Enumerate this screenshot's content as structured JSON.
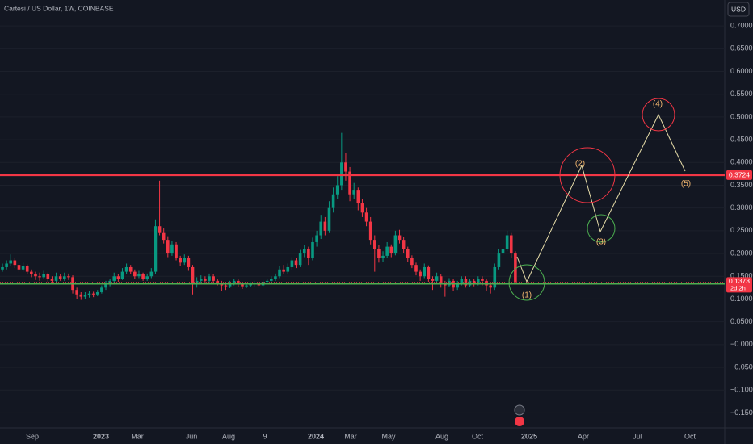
{
  "header": {
    "title": "Cartesi / US Dollar, 1W, COINBASE",
    "currency": "USD"
  },
  "chart_data": {
    "type": "candlestick",
    "up_color": "#089981",
    "down_color": "#f23645",
    "ylim": [
      -0.183,
      0.757
    ],
    "yticks": [
      {
        "value": 0.7,
        "label": "0.7000"
      },
      {
        "value": 0.65,
        "label": "0.6500"
      },
      {
        "value": 0.6,
        "label": "0.6000"
      },
      {
        "value": 0.55,
        "label": "0.5500"
      },
      {
        "value": 0.5,
        "label": "0.5000"
      },
      {
        "value": 0.45,
        "label": "0.4500"
      },
      {
        "value": 0.4,
        "label": "0.4000"
      },
      {
        "value": 0.35,
        "label": "0.3500"
      },
      {
        "value": 0.3,
        "label": "0.3000"
      },
      {
        "value": 0.25,
        "label": "0.2500"
      },
      {
        "value": 0.2,
        "label": "0.2000"
      },
      {
        "value": 0.15,
        "label": "0.1500"
      },
      {
        "value": 0.1,
        "label": "0.1000"
      },
      {
        "value": 0.05,
        "label": "0.0500"
      },
      {
        "value": 0,
        "label": "−0.0000"
      },
      {
        "value": -0.05,
        "label": "−0.0500"
      },
      {
        "value": -0.1,
        "label": "−0.1000"
      },
      {
        "value": -0.15,
        "label": "−0.1500"
      }
    ],
    "x_labels": [
      "Sep",
      "2023",
      "Mar",
      "Jun",
      "Aug",
      "9",
      "2024",
      "Mar",
      "May",
      "Aug",
      "Oct",
      "2025",
      "Apr",
      "Jul",
      "Oct"
    ],
    "levels": [
      {
        "value": 0.3724,
        "color": "#f23645"
      },
      {
        "value": 0.1341,
        "color": "#4caf50"
      }
    ],
    "last_price": {
      "value": 0.1373,
      "countdown": "2d 2h"
    },
    "waves": [
      "(1)",
      "(2)",
      "(3)",
      "(4)",
      "(5)"
    ],
    "candles": [
      [
        0.165,
        0.178,
        0.16,
        0.17
      ],
      [
        0.17,
        0.185,
        0.165,
        0.178
      ],
      [
        0.178,
        0.198,
        0.172,
        0.185
      ],
      [
        0.185,
        0.19,
        0.168,
        0.175
      ],
      [
        0.175,
        0.18,
        0.158,
        0.165
      ],
      [
        0.165,
        0.18,
        0.16,
        0.172
      ],
      [
        0.172,
        0.176,
        0.155,
        0.16
      ],
      [
        0.16,
        0.165,
        0.148,
        0.155
      ],
      [
        0.155,
        0.16,
        0.142,
        0.15
      ],
      [
        0.15,
        0.158,
        0.14,
        0.148
      ],
      [
        0.148,
        0.162,
        0.144,
        0.155
      ],
      [
        0.155,
        0.158,
        0.138,
        0.145
      ],
      [
        0.145,
        0.15,
        0.132,
        0.14
      ],
      [
        0.14,
        0.158,
        0.136,
        0.15
      ],
      [
        0.15,
        0.155,
        0.14,
        0.145
      ],
      [
        0.145,
        0.158,
        0.14,
        0.15
      ],
      [
        0.15,
        0.156,
        0.142,
        0.148
      ],
      [
        0.148,
        0.152,
        0.112,
        0.12
      ],
      [
        0.12,
        0.125,
        0.1,
        0.11
      ],
      [
        0.11,
        0.115,
        0.098,
        0.105
      ],
      [
        0.105,
        0.115,
        0.1,
        0.108
      ],
      [
        0.108,
        0.118,
        0.103,
        0.112
      ],
      [
        0.112,
        0.116,
        0.104,
        0.11
      ],
      [
        0.11,
        0.12,
        0.106,
        0.115
      ],
      [
        0.115,
        0.13,
        0.112,
        0.125
      ],
      [
        0.125,
        0.14,
        0.12,
        0.135
      ],
      [
        0.135,
        0.145,
        0.128,
        0.14
      ],
      [
        0.14,
        0.158,
        0.136,
        0.15
      ],
      [
        0.15,
        0.155,
        0.138,
        0.145
      ],
      [
        0.145,
        0.168,
        0.142,
        0.16
      ],
      [
        0.16,
        0.178,
        0.155,
        0.17
      ],
      [
        0.17,
        0.175,
        0.155,
        0.16
      ],
      [
        0.16,
        0.165,
        0.145,
        0.15
      ],
      [
        0.15,
        0.162,
        0.146,
        0.155
      ],
      [
        0.155,
        0.158,
        0.14,
        0.145
      ],
      [
        0.145,
        0.156,
        0.14,
        0.15
      ],
      [
        0.15,
        0.168,
        0.146,
        0.16
      ],
      [
        0.16,
        0.275,
        0.155,
        0.26
      ],
      [
        0.26,
        0.36,
        0.24,
        0.245
      ],
      [
        0.245,
        0.255,
        0.222,
        0.23
      ],
      [
        0.23,
        0.238,
        0.192,
        0.2
      ],
      [
        0.2,
        0.228,
        0.195,
        0.22
      ],
      [
        0.22,
        0.225,
        0.185,
        0.19
      ],
      [
        0.19,
        0.195,
        0.172,
        0.18
      ],
      [
        0.18,
        0.198,
        0.175,
        0.19
      ],
      [
        0.19,
        0.195,
        0.162,
        0.17
      ],
      [
        0.17,
        0.175,
        0.11,
        0.135
      ],
      [
        0.135,
        0.148,
        0.125,
        0.14
      ],
      [
        0.14,
        0.152,
        0.134,
        0.145
      ],
      [
        0.145,
        0.15,
        0.135,
        0.14
      ],
      [
        0.14,
        0.156,
        0.136,
        0.15
      ],
      [
        0.15,
        0.154,
        0.135,
        0.14
      ],
      [
        0.14,
        0.145,
        0.13,
        0.135
      ],
      [
        0.135,
        0.14,
        0.118,
        0.13
      ],
      [
        0.13,
        0.136,
        0.12,
        0.128
      ],
      [
        0.128,
        0.14,
        0.124,
        0.135
      ],
      [
        0.135,
        0.145,
        0.13,
        0.14
      ],
      [
        0.14,
        0.144,
        0.126,
        0.132
      ],
      [
        0.132,
        0.136,
        0.122,
        0.128
      ],
      [
        0.128,
        0.135,
        0.124,
        0.13
      ],
      [
        0.13,
        0.137,
        0.126,
        0.132
      ],
      [
        0.132,
        0.14,
        0.128,
        0.135
      ],
      [
        0.135,
        0.138,
        0.125,
        0.13
      ],
      [
        0.13,
        0.142,
        0.127,
        0.138
      ],
      [
        0.138,
        0.145,
        0.133,
        0.14
      ],
      [
        0.14,
        0.15,
        0.136,
        0.145
      ],
      [
        0.145,
        0.156,
        0.14,
        0.15
      ],
      [
        0.15,
        0.172,
        0.146,
        0.165
      ],
      [
        0.165,
        0.175,
        0.155,
        0.16
      ],
      [
        0.16,
        0.178,
        0.156,
        0.17
      ],
      [
        0.17,
        0.192,
        0.165,
        0.185
      ],
      [
        0.185,
        0.19,
        0.168,
        0.175
      ],
      [
        0.175,
        0.208,
        0.17,
        0.2
      ],
      [
        0.2,
        0.218,
        0.192,
        0.21
      ],
      [
        0.21,
        0.215,
        0.175,
        0.19
      ],
      [
        0.19,
        0.235,
        0.185,
        0.225
      ],
      [
        0.225,
        0.25,
        0.215,
        0.24
      ],
      [
        0.24,
        0.285,
        0.232,
        0.27
      ],
      [
        0.27,
        0.28,
        0.24,
        0.25
      ],
      [
        0.25,
        0.315,
        0.245,
        0.3
      ],
      [
        0.3,
        0.345,
        0.29,
        0.33
      ],
      [
        0.33,
        0.37,
        0.32,
        0.35
      ],
      [
        0.35,
        0.465,
        0.34,
        0.4
      ],
      [
        0.4,
        0.42,
        0.36,
        0.38
      ],
      [
        0.38,
        0.39,
        0.315,
        0.33
      ],
      [
        0.33,
        0.355,
        0.32,
        0.34
      ],
      [
        0.34,
        0.345,
        0.295,
        0.31
      ],
      [
        0.31,
        0.32,
        0.28,
        0.29
      ],
      [
        0.29,
        0.3,
        0.26,
        0.27
      ],
      [
        0.27,
        0.28,
        0.22,
        0.23
      ],
      [
        0.23,
        0.24,
        0.16,
        0.21
      ],
      [
        0.21,
        0.218,
        0.18,
        0.19
      ],
      [
        0.19,
        0.205,
        0.182,
        0.195
      ],
      [
        0.195,
        0.225,
        0.19,
        0.215
      ],
      [
        0.215,
        0.22,
        0.192,
        0.2
      ],
      [
        0.2,
        0.25,
        0.196,
        0.24
      ],
      [
        0.24,
        0.252,
        0.222,
        0.23
      ],
      [
        0.23,
        0.236,
        0.2,
        0.21
      ],
      [
        0.21,
        0.215,
        0.182,
        0.19
      ],
      [
        0.19,
        0.196,
        0.168,
        0.175
      ],
      [
        0.175,
        0.18,
        0.152,
        0.16
      ],
      [
        0.16,
        0.165,
        0.14,
        0.15
      ],
      [
        0.15,
        0.178,
        0.146,
        0.17
      ],
      [
        0.17,
        0.174,
        0.138,
        0.145
      ],
      [
        0.145,
        0.15,
        0.12,
        0.14
      ],
      [
        0.14,
        0.158,
        0.134,
        0.15
      ],
      [
        0.15,
        0.155,
        0.125,
        0.135
      ],
      [
        0.135,
        0.14,
        0.105,
        0.13
      ],
      [
        0.13,
        0.146,
        0.126,
        0.14
      ],
      [
        0.14,
        0.144,
        0.118,
        0.125
      ],
      [
        0.125,
        0.14,
        0.12,
        0.135
      ],
      [
        0.135,
        0.15,
        0.13,
        0.145
      ],
      [
        0.145,
        0.15,
        0.125,
        0.13
      ],
      [
        0.13,
        0.145,
        0.126,
        0.14
      ],
      [
        0.14,
        0.144,
        0.128,
        0.135
      ],
      [
        0.135,
        0.15,
        0.13,
        0.145
      ],
      [
        0.145,
        0.15,
        0.13,
        0.14
      ],
      [
        0.14,
        0.145,
        0.118,
        0.13
      ],
      [
        0.13,
        0.138,
        0.112,
        0.125
      ],
      [
        0.125,
        0.178,
        0.12,
        0.17
      ],
      [
        0.17,
        0.21,
        0.165,
        0.2
      ],
      [
        0.2,
        0.23,
        0.195,
        0.21
      ],
      [
        0.21,
        0.25,
        0.205,
        0.24
      ],
      [
        0.24,
        0.245,
        0.19,
        0.2
      ],
      [
        0.2,
        0.205,
        0.132,
        0.1373
      ]
    ]
  }
}
